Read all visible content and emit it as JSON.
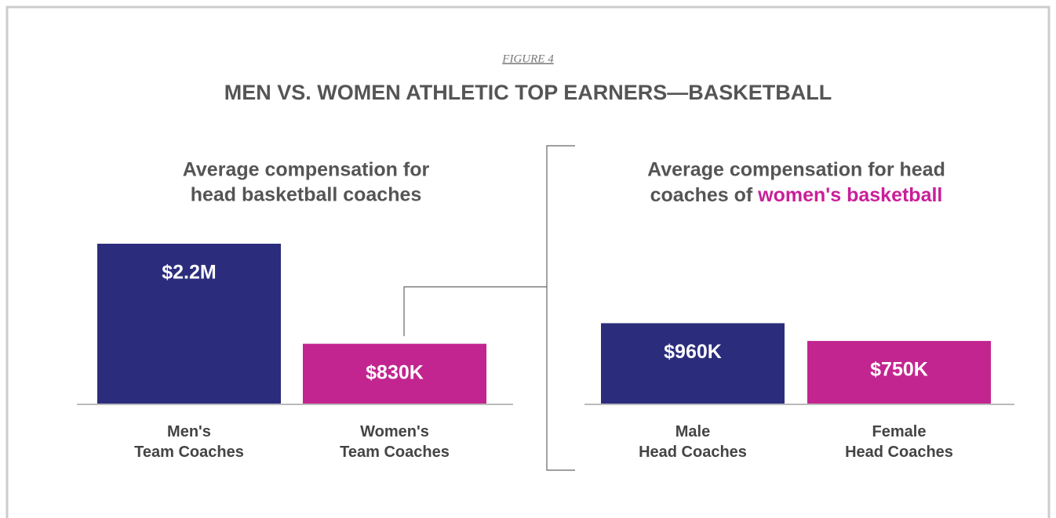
{
  "figure_label": "FIGURE 4",
  "title": "MEN VS. WOMEN ATHLETIC TOP EARNERS—BASKETBALL",
  "chart_data": [
    {
      "type": "bar",
      "subtitle": [
        "Average compensation for",
        "head basketball coaches"
      ],
      "categories": [
        "Men's\nTeam Coaches",
        "Women's\nTeam Coaches"
      ],
      "values": [
        2200000,
        830000
      ],
      "value_labels": [
        "$2.2M",
        "$830K"
      ],
      "colors": [
        "#2b2d7c",
        "#c2258f"
      ],
      "ylim": [
        0,
        2200000
      ]
    },
    {
      "type": "bar",
      "subtitle": [
        "Average compensation for head",
        "coaches of"
      ],
      "subtitle_highlight": "women's basketball",
      "highlight_color": "#c91f99",
      "categories": [
        "Male\nHead Coaches",
        "Female\nHead Coaches"
      ],
      "values": [
        960000,
        750000
      ],
      "value_labels": [
        "$960K",
        "$750K"
      ],
      "colors": [
        "#2b2d7c",
        "#c2258f"
      ],
      "ylim": [
        0,
        1900000
      ]
    }
  ]
}
